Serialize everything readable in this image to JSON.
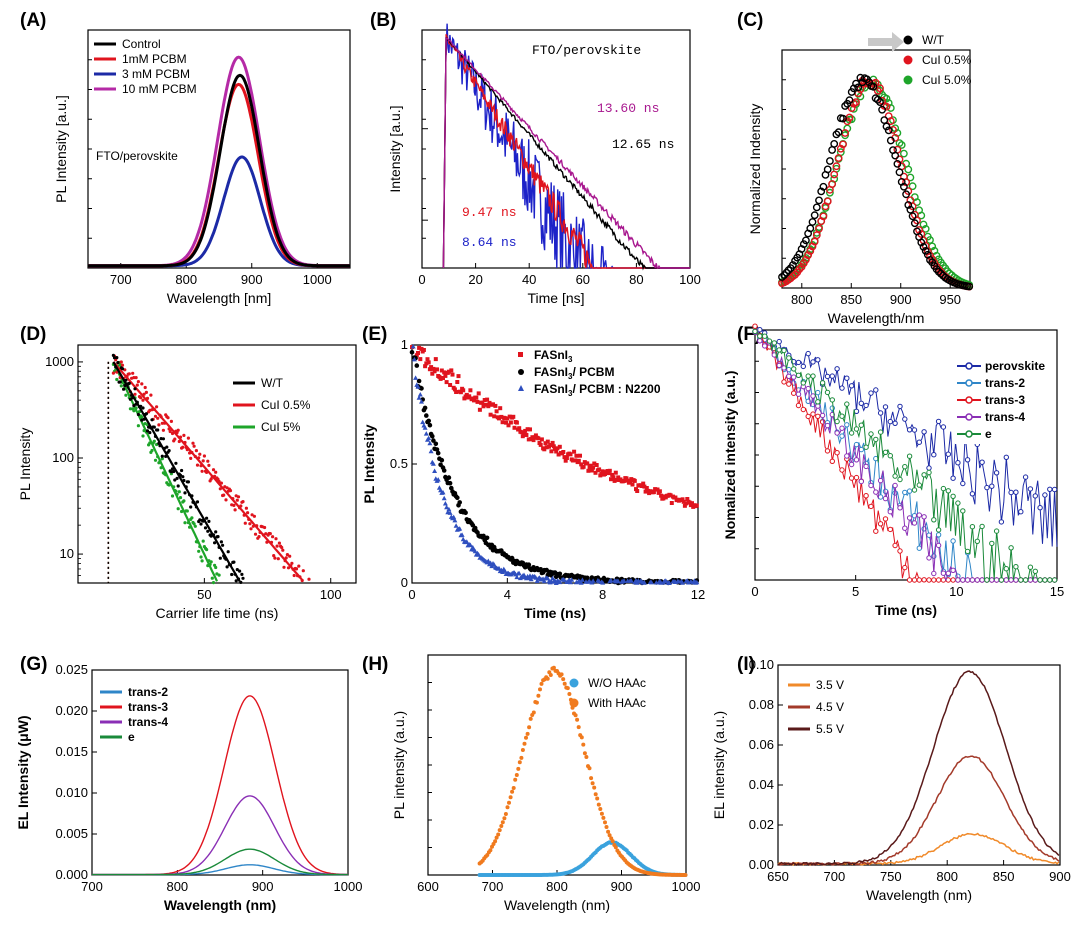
{
  "figure": "Photoluminescence and electroluminescence characterization panels",
  "chart_data": [
    {
      "id": "A",
      "type": "line",
      "panel_label": "(A)",
      "xlabel": "Wavelength [nm]",
      "ylabel": "PL Intensity [a.u.]",
      "xlim": [
        650,
        1050
      ],
      "ylim": [
        0,
        1.05
      ],
      "xticks": [
        700,
        800,
        900,
        1000
      ],
      "annotation": "FTO/perovskite",
      "series": [
        {
          "name": "Control",
          "color": "#000000",
          "peak": 0.84,
          "center": 882,
          "width": 30
        },
        {
          "name": "1mM PCBM",
          "color": "#e0141e",
          "peak": 0.8,
          "center": 880,
          "width": 30
        },
        {
          "name": "3 mM PCBM",
          "color": "#1c2aa6",
          "peak": 0.48,
          "center": 885,
          "width": 28
        },
        {
          "name": "10 mM PCBM",
          "color": "#b52aa6",
          "peak": 0.92,
          "center": 880,
          "width": 32
        }
      ]
    },
    {
      "id": "B",
      "type": "line",
      "panel_label": "(B)",
      "xlabel": "Time [ns]",
      "ylabel": "Intensity [a.u.]",
      "xlim": [
        0,
        100
      ],
      "yscale": "log",
      "ylim": [
        0.003,
        1.2
      ],
      "xticks": [
        0,
        20,
        40,
        60,
        80,
        100
      ],
      "annotation": "FTO/perovskite",
      "onset": 9,
      "series": [
        {
          "name": "13.60 ns",
          "color": "#a8188f",
          "tau": 13.6
        },
        {
          "name": "12.65 ns",
          "color": "#000000",
          "tau": 12.65
        },
        {
          "name": "9.47 ns",
          "color": "#e0141e",
          "tau": 9.47
        },
        {
          "name": "8.64 ns",
          "color": "#1d22c8",
          "tau": 8.64
        }
      ]
    },
    {
      "id": "C",
      "type": "scatter",
      "panel_label": "(C)",
      "xlabel": "Wavelength/nm",
      "ylabel": "Normalized Indensity",
      "xlim": [
        780,
        970
      ],
      "ylim": [
        0,
        1.15
      ],
      "xticks": [
        800,
        850,
        900,
        950
      ],
      "series": [
        {
          "name": "W/T",
          "color": "#000000",
          "center": 862,
          "width": 34
        },
        {
          "name": "CuI 0.5%",
          "color": "#e0141e",
          "center": 868,
          "width": 32
        },
        {
          "name": "CuI 5.0%",
          "color": "#1ea52a",
          "center": 871,
          "width": 34
        }
      ]
    },
    {
      "id": "D",
      "type": "scatter",
      "panel_label": "(D)",
      "xlabel": "Carrier life time (ns)",
      "ylabel": "PL Intensity",
      "xlim": [
        0,
        110
      ],
      "yscale": "log",
      "ylim": [
        5,
        1500
      ],
      "xticks": [
        50,
        100
      ],
      "yticks": [
        10,
        100,
        1000
      ],
      "onset": 14,
      "series": [
        {
          "name": "W/T",
          "color": "#000000",
          "tau": 9.5
        },
        {
          "name": "CuI 0.5%",
          "color": "#e0141e",
          "tau": 14.3
        },
        {
          "name": "CuI 5%",
          "color": "#1ea52a",
          "tau": 7.8
        }
      ]
    },
    {
      "id": "E",
      "type": "scatter",
      "panel_label": "(E)",
      "xlabel": "Time (ns)",
      "ylabel": "PL Intensity",
      "xlim": [
        0,
        12
      ],
      "ylim": [
        0,
        1
      ],
      "xticks": [
        0,
        4,
        8,
        12
      ],
      "yticks": [
        0.0,
        0.5,
        1.0
      ],
      "series": [
        {
          "name": "FASnI",
          "color": "#e0141e",
          "tau": 10.5
        },
        {
          "name": "FASnI",
          "color": "#000000",
          "tau": 1.8
        },
        {
          "name": "FASnI",
          "color": "#2f4fbf",
          "tau": 1.3
        }
      ],
      "legend_suffixes": [
        "",
        "/ PCBM",
        "/ PCBM : N2200"
      ],
      "subscript": "3"
    },
    {
      "id": "F",
      "type": "scatter",
      "panel_label": "(F)",
      "xlabel": "Time (ns)",
      "ylabel": "Nomalized intensity (a.u.)",
      "xlim": [
        0,
        15
      ],
      "yscale": "log",
      "ylim": [
        0.003,
        1
      ],
      "xticks": [
        0,
        5,
        10,
        15
      ],
      "series": [
        {
          "name": "perovskite",
          "color": "#1c2aa6",
          "tau": 3.3
        },
        {
          "name": "trans-2",
          "color": "#2f86c8",
          "tau": 1.8
        },
        {
          "name": "trans-3",
          "color": "#e0141e",
          "tau": 1.4
        },
        {
          "name": "trans-4",
          "color": "#8a2fb5",
          "tau": 1.7
        },
        {
          "name": "e",
          "color": "#1a8a3a",
          "tau": 2.2
        }
      ]
    },
    {
      "id": "G",
      "type": "line",
      "panel_label": "(G)",
      "xlabel": "Wavelength (nm)",
      "ylabel": "EL Intensity (μW)",
      "xlim": [
        700,
        1000
      ],
      "ylim": [
        0,
        0.025
      ],
      "xticks": [
        700,
        800,
        900,
        1000
      ],
      "yticks": [
        0.0,
        0.005,
        0.01,
        0.015,
        0.02,
        0.025
      ],
      "ytick_labels": [
        "0.000",
        "0.005",
        "0.010",
        "0.015",
        "0.020",
        "0.025"
      ],
      "series": [
        {
          "name": "trans-2",
          "color": "#2f86c8",
          "peak": 0.0012,
          "center": 885,
          "width": 28
        },
        {
          "name": "trans-3",
          "color": "#e0141e",
          "peak": 0.0218,
          "center": 885,
          "width": 30
        },
        {
          "name": "trans-4",
          "color": "#8a2fb5",
          "peak": 0.0096,
          "center": 885,
          "width": 29
        },
        {
          "name": "e",
          "color": "#1a8a3a",
          "peak": 0.0031,
          "center": 885,
          "width": 29
        }
      ]
    },
    {
      "id": "H",
      "type": "scatter",
      "panel_label": "(H)",
      "xlabel": "Wavelength (nm)",
      "ylabel": "PL intensity (a.u.)",
      "xlim": [
        600,
        1000
      ],
      "ylim": [
        0,
        1.08
      ],
      "xticks": [
        600,
        700,
        800,
        900,
        1000
      ],
      "series": [
        {
          "name": "W/O HAAc",
          "color": "#3aa2dd",
          "peak": 0.16,
          "center": 885,
          "width": 30
        },
        {
          "name": "With HAAc",
          "color": "#f07a1e",
          "peak": 1.0,
          "center": 795,
          "width": 48
        }
      ]
    },
    {
      "id": "I",
      "type": "line",
      "panel_label": "(I)",
      "xlabel": "Wavelength (nm)",
      "ylabel": "EL intensity (a.u.)",
      "xlim": [
        650,
        900
      ],
      "ylim": [
        0,
        0.1
      ],
      "xticks": [
        650,
        700,
        750,
        800,
        850,
        900
      ],
      "yticks": [
        0.0,
        0.02,
        0.04,
        0.06,
        0.08,
        0.1
      ],
      "ytick_labels": [
        "0.00",
        "0.02",
        "0.04",
        "0.06",
        "0.08",
        "0.10"
      ],
      "series": [
        {
          "name": "3.5 V",
          "color": "#f08a2a",
          "peak": 0.015,
          "center": 823,
          "width": 28
        },
        {
          "name": "4.5 V",
          "color": "#a33a2a",
          "peak": 0.054,
          "center": 821,
          "width": 30
        },
        {
          "name": "5.5 V",
          "color": "#5a1a1a",
          "peak": 0.096,
          "center": 820,
          "width": 32
        }
      ]
    }
  ]
}
